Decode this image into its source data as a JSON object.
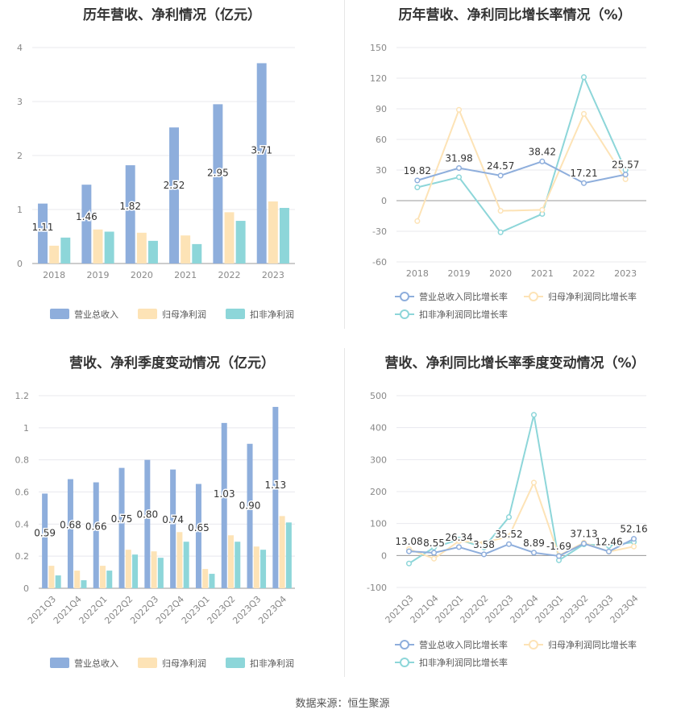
{
  "colors": {
    "revenue": "#8eaedc",
    "parent_profit": "#fde3b6",
    "deducted_profit": "#8dd6d9",
    "revenue_line": "#8eaedc",
    "parent_line": "#fde3b6",
    "deducted_line": "#8dd6d9",
    "grid": "#e8e8ee",
    "axis_text": "#888888"
  },
  "footer": "数据来源：恒生聚源",
  "chart_data": [
    {
      "id": "annual-bar",
      "type": "bar",
      "title": "历年营收、净利情况（亿元）",
      "categories": [
        "2018",
        "2019",
        "2020",
        "2021",
        "2022",
        "2023"
      ],
      "series": [
        {
          "name": "营业总收入",
          "values": [
            1.11,
            1.46,
            1.82,
            2.52,
            2.95,
            3.71
          ],
          "labels": [
            "1.11",
            "1.46",
            "1.82",
            "2.52",
            "2.95",
            "3.71"
          ]
        },
        {
          "name": "归母净利润",
          "values": [
            0.33,
            0.63,
            0.57,
            0.52,
            0.95,
            1.15
          ]
        },
        {
          "name": "扣非净利润",
          "values": [
            0.48,
            0.59,
            0.42,
            0.36,
            0.79,
            1.03
          ]
        }
      ],
      "ylim": [
        0,
        4
      ],
      "yticks": [
        "0",
        "1",
        "2",
        "3",
        "4"
      ],
      "legend": "bottom"
    },
    {
      "id": "annual-line",
      "type": "line",
      "title": "历年营收、净利同比增长率情况（%）",
      "categories": [
        "2018",
        "2019",
        "2020",
        "2021",
        "2022",
        "2023"
      ],
      "series": [
        {
          "name": "营业总收入同比增长率",
          "values": [
            19.82,
            31.98,
            24.57,
            38.42,
            17.21,
            25.57
          ],
          "labels": [
            "19.82",
            "31.98",
            "24.57",
            "38.42",
            "17.21",
            "25.57"
          ]
        },
        {
          "name": "归母净利润同比增长率",
          "values": [
            -20,
            89,
            -10,
            -9,
            85,
            21
          ]
        },
        {
          "name": "扣非净利润同比增长率",
          "values": [
            13,
            23,
            -31,
            -13,
            121,
            30
          ]
        }
      ],
      "ylim": [
        -60,
        150
      ],
      "yticks": [
        "-60",
        "-30",
        "0",
        "30",
        "60",
        "90",
        "120",
        "150"
      ],
      "legend": "bottom"
    },
    {
      "id": "quarter-bar",
      "type": "bar",
      "title": "营收、净利季度变动情况（亿元）",
      "categories": [
        "2021Q3",
        "2021Q4",
        "2022Q1",
        "2022Q2",
        "2022Q3",
        "2022Q4",
        "2023Q1",
        "2023Q2",
        "2023Q3",
        "2023Q4"
      ],
      "series": [
        {
          "name": "营业总收入",
          "values": [
            0.59,
            0.68,
            0.66,
            0.75,
            0.8,
            0.74,
            0.65,
            1.03,
            0.9,
            1.13
          ],
          "labels": [
            "0.59",
            "0.68",
            "0.66",
            "0.75",
            "0.80",
            "0.74",
            "0.65",
            "1.03",
            "0.90",
            "1.13"
          ]
        },
        {
          "name": "归母净利润",
          "values": [
            0.14,
            0.11,
            0.14,
            0.24,
            0.23,
            0.35,
            0.12,
            0.33,
            0.26,
            0.45
          ]
        },
        {
          "name": "扣非净利润",
          "values": [
            0.08,
            0.05,
            0.11,
            0.21,
            0.19,
            0.29,
            0.09,
            0.29,
            0.24,
            0.41
          ]
        }
      ],
      "ylim": [
        0,
        1.2
      ],
      "yticks": [
        "0",
        "0.2",
        "0.4",
        "0.6",
        "0.8",
        "1",
        "1.2"
      ],
      "legend": "bottom"
    },
    {
      "id": "quarter-line",
      "type": "line",
      "title": "营收、净利同比增长率季度变动情况（%）",
      "categories": [
        "2021Q3",
        "2021Q4",
        "2022Q1",
        "2022Q2",
        "2022Q3",
        "2022Q4",
        "2023Q1",
        "2023Q2",
        "2023Q3",
        "2023Q4"
      ],
      "series": [
        {
          "name": "营业总收入同比增长率",
          "values": [
            13.08,
            8.55,
            26.34,
            3.58,
            35.52,
            8.89,
            -1.69,
            37.13,
            12.46,
            52.16
          ],
          "labels": [
            "13.08",
            "8.55",
            "26.34",
            "3.58",
            "35.52",
            "8.89",
            "-1.69",
            "37.13",
            "12.46",
            "52.16"
          ]
        },
        {
          "name": "归母净利润同比增长率",
          "values": [
            20,
            -10,
            45,
            40,
            60,
            228,
            0,
            40,
            12,
            28
          ]
        },
        {
          "name": "扣非净利润同比增长率",
          "values": [
            -25,
            25,
            50,
            25,
            120,
            440,
            -15,
            35,
            30,
            42
          ]
        }
      ],
      "ylim": [
        -100,
        500
      ],
      "yticks": [
        "-100",
        "0",
        "100",
        "200",
        "300",
        "400",
        "500"
      ],
      "legend": "bottom"
    }
  ]
}
